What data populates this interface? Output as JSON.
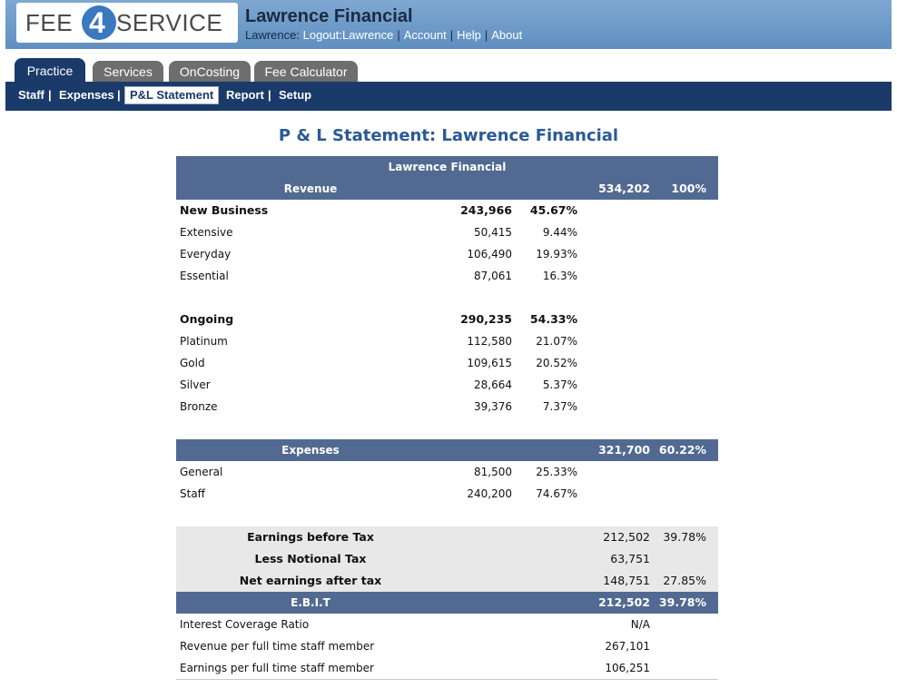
{
  "header": {
    "logo_left": "FEE",
    "logo_num": "4",
    "logo_right": "SERVICE",
    "firm_title": "Lawrence Financial",
    "user_label": "Lawrence:",
    "links": [
      "Logout:Lawrence",
      "Account",
      "Help",
      "About"
    ]
  },
  "tabs": [
    "Practice",
    "Services",
    "OnCosting",
    "Fee Calculator"
  ],
  "subnav": [
    "Staff",
    "Expenses",
    "P&L Statement",
    "Report",
    "Setup"
  ],
  "page_title": "P & L Statement: Lawrence Financial",
  "statement": {
    "company": "Lawrence Financial",
    "revenue": {
      "label": "Revenue",
      "total": "534,202",
      "pct": "100%"
    },
    "new_business": {
      "label": "New Business",
      "total": "243,966",
      "pct": "45.67%"
    },
    "new_business_items": [
      {
        "label": "Extensive",
        "value": "50,415",
        "pct": "9.44%"
      },
      {
        "label": "Everyday",
        "value": "106,490",
        "pct": "19.93%"
      },
      {
        "label": "Essential",
        "value": "87,061",
        "pct": "16.3%"
      }
    ],
    "ongoing": {
      "label": "Ongoing",
      "total": "290,235",
      "pct": "54.33%"
    },
    "ongoing_items": [
      {
        "label": "Platinum",
        "value": "112,580",
        "pct": "21.07%"
      },
      {
        "label": "Gold",
        "value": "109,615",
        "pct": "20.52%"
      },
      {
        "label": "Silver",
        "value": "28,664",
        "pct": "5.37%"
      },
      {
        "label": "Bronze",
        "value": "39,376",
        "pct": "7.37%"
      }
    ],
    "expenses": {
      "label": "Expenses",
      "total": "321,700",
      "pct": "60.22%"
    },
    "expense_items": [
      {
        "label": "General",
        "value": "81,500",
        "pct": "25.33%"
      },
      {
        "label": "Staff",
        "value": "240,200",
        "pct": "74.67%"
      }
    ],
    "earnings_before_tax": {
      "label": "Earnings before Tax",
      "value": "212,502",
      "pct": "39.78%"
    },
    "notional_tax": {
      "label": "Less Notional Tax",
      "value": "63,751",
      "pct": ""
    },
    "net_earnings": {
      "label": "Net earnings after tax",
      "value": "148,751",
      "pct": "27.85%"
    },
    "ebit": {
      "label": "E.B.I.T",
      "value": "212,502",
      "pct": "39.78%"
    },
    "interest_coverage": {
      "label": "Interest Coverage Ratio",
      "value": "N/A"
    },
    "revenue_per_staff": {
      "label": "Revenue per full time staff member",
      "value": "267,101"
    },
    "earnings_per_staff": {
      "label": "Earnings per full time staff member",
      "value": "106,251"
    }
  },
  "colors": {
    "header_blue": "#6f9ccb",
    "nav_navy": "#1a3a6a",
    "band_slate": "#526a91",
    "title_blue": "#2a5a94",
    "grey_row": "#e8e8e8"
  }
}
